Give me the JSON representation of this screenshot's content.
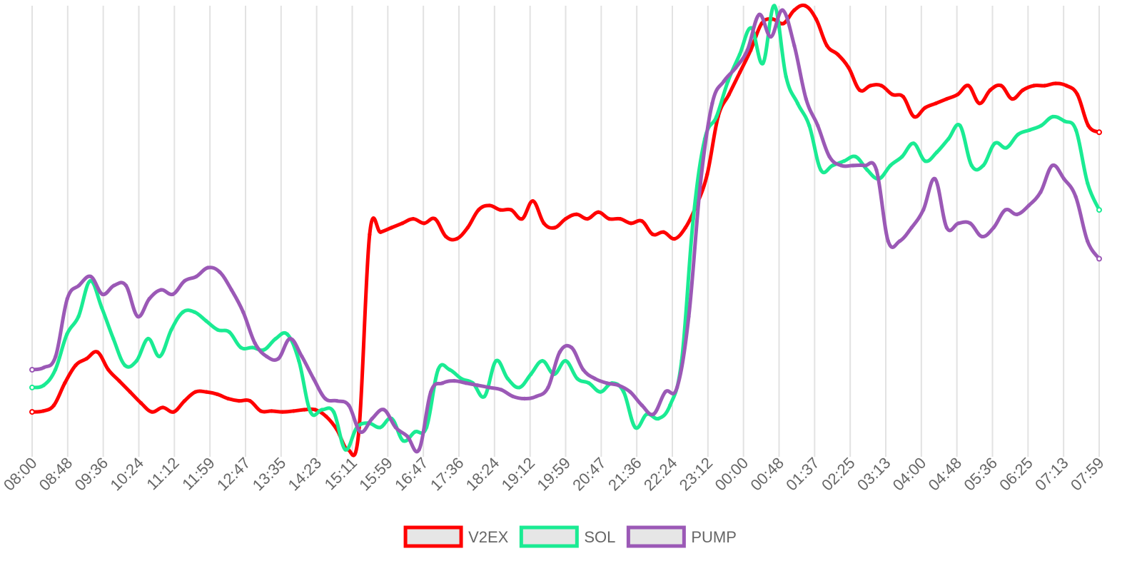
{
  "chart_data": {
    "type": "line",
    "title": "",
    "xlabel": "",
    "ylabel": "",
    "ylim": [
      0,
      100
    ],
    "grid": "vertical",
    "legend_position": "bottom",
    "x_labels": [
      "08:00",
      "08:48",
      "09:36",
      "10:24",
      "11:12",
      "11:59",
      "12:47",
      "13:35",
      "14:23",
      "15:11",
      "15:59",
      "16:47",
      "17:36",
      "18:24",
      "19:12",
      "19:59",
      "20:47",
      "21:36",
      "22:24",
      "23:12",
      "00:00",
      "00:48",
      "01:37",
      "02:25",
      "03:13",
      "04:00",
      "04:48",
      "05:36",
      "06:25",
      "07:13",
      "07:59"
    ],
    "series": [
      {
        "name": "V2EX",
        "color": "#ff0000",
        "values": [
          8.5,
          8.7,
          10.0,
          15.0,
          19.0,
          20.5,
          22.0,
          18.0,
          15.5,
          13.0,
          10.5,
          8.5,
          9.5,
          8.5,
          11.0,
          13.0,
          13.0,
          12.5,
          11.5,
          11.0,
          11.0,
          8.7,
          8.7,
          8.5,
          8.7,
          9.0,
          9.0,
          7.5,
          4.5,
          0.0,
          4.0,
          48.5,
          49.0,
          50.0,
          51.0,
          52.0,
          51.0,
          52.0,
          48.0,
          47.5,
          50.0,
          54.0,
          55.0,
          54.0,
          54.0,
          52.0,
          56.0,
          51.0,
          50.0,
          52.0,
          53.0,
          52.0,
          53.5,
          52.0,
          52.0,
          51.0,
          51.5,
          48.5,
          49.0,
          47.5,
          50.0,
          55.0,
          62.0,
          75.0,
          80.0,
          85.0,
          90.0,
          96.0,
          97.0,
          96.0,
          99.0,
          100.0,
          97.0,
          91.0,
          89.0,
          86.0,
          81.0,
          82.0,
          82.0,
          80.0,
          79.5,
          75.0,
          77.0,
          78.0,
          79.0,
          80.0,
          82.0,
          78.0,
          81.0,
          82.0,
          79.0,
          81.0,
          82.0,
          82.0,
          82.5,
          82.0,
          80.0,
          73.0,
          71.5
        ],
        "values_note": ""
      },
      {
        "name": "SOL",
        "color": "#1aeb93",
        "values": [
          14.0,
          14.5,
          18.0,
          26.0,
          30.0,
          38.0,
          32.0,
          25.0,
          19.0,
          20.0,
          25.0,
          21.0,
          27.0,
          31.0,
          31.0,
          29.0,
          27.0,
          26.5,
          23.0,
          23.0,
          22.5,
          25.0,
          26.0,
          20.0,
          8.5,
          9.0,
          8.5,
          0.0,
          5.0,
          6.0,
          5.0,
          7.0,
          2.0,
          4.0,
          5.0,
          18.0,
          18.0,
          16.0,
          15.0,
          12.0,
          20.0,
          16.0,
          14.0,
          17.0,
          20.0,
          17.0,
          20.0,
          16.0,
          15.0,
          13.0,
          15.0,
          13.0,
          5.0,
          8.0,
          7.0,
          10.0,
          20.0,
          52.0,
          70.0,
          75.0,
          83.0,
          89.0,
          95.0,
          87.0,
          100.0,
          84.0,
          78.0,
          73.0,
          63.0,
          64.0,
          65.0,
          66.0,
          63.0,
          61.0,
          64.0,
          66.0,
          69.0,
          65.0,
          67.0,
          70.0,
          73.0,
          64.0,
          64.0,
          69.0,
          68.0,
          71.0,
          72.0,
          73.0,
          75.0,
          74.0,
          72.0,
          60.0,
          54.0
        ],
        "values_note": ""
      },
      {
        "name": "PUMP",
        "color": "#9b59b6",
        "values": [
          18.0,
          18.5,
          21.0,
          34.0,
          37.0,
          39.0,
          35.0,
          37.0,
          37.0,
          30.0,
          34.0,
          36.0,
          35.0,
          38.0,
          39.0,
          41.0,
          40.0,
          36.0,
          31.0,
          24.0,
          21.0,
          20.5,
          25.0,
          21.0,
          16.0,
          11.5,
          11.0,
          10.0,
          4.0,
          7.0,
          9.0,
          5.0,
          3.0,
          0.0,
          13.0,
          15.0,
          15.5,
          15.0,
          14.5,
          14.0,
          13.5,
          12.0,
          11.5,
          12.0,
          14.0,
          22.0,
          23.0,
          18.0,
          16.0,
          15.0,
          14.5,
          13.0,
          10.0,
          8.0,
          13.0,
          14.0,
          30.0,
          60.0,
          78.0,
          83.0,
          86.0,
          90.0,
          98.0,
          93.0,
          99.0,
          91.0,
          79.0,
          73.0,
          66.0,
          64.0,
          64.0,
          64.0,
          63.0,
          47.0,
          47.0,
          50.0,
          54.0,
          61.0,
          50.0,
          51.0,
          51.0,
          48.0,
          50.0,
          54.0,
          53.0,
          55.0,
          58.0,
          64.0,
          61.0,
          57.0,
          47.0,
          43.0
        ],
        "values_note": ""
      }
    ]
  },
  "legend": {
    "items": [
      {
        "label": "V2EX",
        "color": "#ff0000"
      },
      {
        "label": "SOL",
        "color": "#1aeb93"
      },
      {
        "label": "PUMP",
        "color": "#9b59b6"
      }
    ]
  }
}
